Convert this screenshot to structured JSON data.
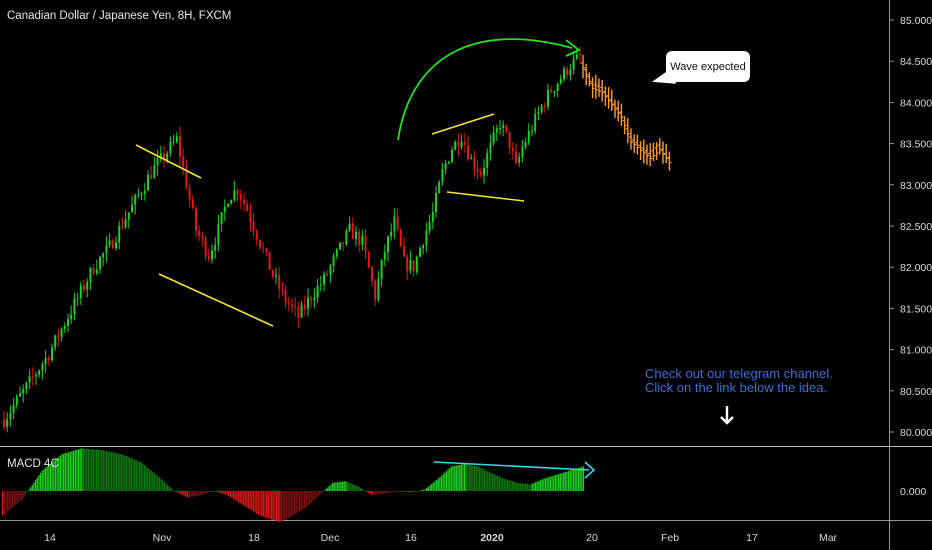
{
  "header": {
    "title": "Canadian Dollar / Japanese Yen, 8H, FXCM"
  },
  "indicator": {
    "label": "MACD 4C",
    "zero_label": "0.000"
  },
  "annotations": {
    "bubble_text": "Wave expected",
    "note_line1": "Check out our telegram channel.",
    "note_line2": "Click on the link below the idea."
  },
  "colors": {
    "up": "#1fd11f",
    "down": "#e01818",
    "projection": "#ff9d22",
    "pattern_lines": "#f4e53a",
    "arc": "#22e322",
    "divergence": "#3cd8e8",
    "note": "#3f6fd6",
    "background": "#000000"
  },
  "chart_data": {
    "type": "candlestick",
    "title": "Canadian Dollar / Japanese Yen, 8H, FXCM",
    "y_axis": {
      "ticks": [
        "85.000",
        "84.500",
        "84.000",
        "83.500",
        "83.000",
        "82.500",
        "82.000",
        "81.500",
        "81.000",
        "80.500",
        "80.000"
      ],
      "range": [
        79.8,
        85.2
      ]
    },
    "x_axis": {
      "ticks": [
        "14",
        "Nov",
        "18",
        "Dec",
        "16",
        "2020",
        "20",
        "Feb",
        "17",
        "Mar"
      ]
    },
    "price_path": [
      [
        0,
        80.15
      ],
      [
        8,
        80.6
      ],
      [
        14,
        80.95
      ],
      [
        20,
        81.4
      ],
      [
        24,
        81.7
      ],
      [
        28,
        82.0
      ],
      [
        33,
        82.25
      ],
      [
        38,
        82.6
      ],
      [
        41,
        82.8
      ],
      [
        46,
        83.15
      ],
      [
        50,
        83.35
      ],
      [
        54,
        83.55
      ],
      [
        56,
        83.2
      ],
      [
        60,
        82.45
      ],
      [
        64,
        82.15
      ],
      [
        67,
        82.45
      ],
      [
        70,
        82.85
      ],
      [
        73,
        82.95
      ],
      [
        76,
        82.7
      ],
      [
        80,
        82.3
      ],
      [
        84,
        81.9
      ],
      [
        88,
        81.6
      ],
      [
        92,
        81.4
      ],
      [
        96,
        81.65
      ],
      [
        100,
        81.85
      ],
      [
        104,
        82.15
      ],
      [
        108,
        82.45
      ],
      [
        112,
        82.3
      ],
      [
        116,
        81.65
      ],
      [
        119,
        82.2
      ],
      [
        122,
        82.55
      ],
      [
        125,
        82.05
      ],
      [
        128,
        82.0
      ],
      [
        131,
        82.35
      ],
      [
        134,
        82.65
      ],
      [
        137,
        83.15
      ],
      [
        140,
        83.45
      ],
      [
        143,
        83.6
      ],
      [
        146,
        83.3
      ],
      [
        149,
        83.15
      ],
      [
        152,
        83.45
      ],
      [
        155,
        83.75
      ],
      [
        158,
        83.5
      ],
      [
        160,
        83.2
      ],
      [
        162,
        83.45
      ],
      [
        165,
        83.7
      ],
      [
        168,
        83.95
      ],
      [
        171,
        84.15
      ],
      [
        174,
        84.3
      ],
      [
        177,
        84.45
      ],
      [
        180,
        84.55
      ]
    ],
    "projection_path": [
      [
        180,
        84.45
      ],
      [
        183,
        84.2
      ],
      [
        186,
        84.15
      ],
      [
        189,
        84.0
      ],
      [
        192,
        83.85
      ],
      [
        195,
        83.55
      ],
      [
        198,
        83.45
      ],
      [
        201,
        83.35
      ],
      [
        204,
        83.45
      ],
      [
        207,
        83.3
      ]
    ],
    "macd_path": [
      [
        0,
        -0.3
      ],
      [
        6,
        -0.1
      ],
      [
        12,
        0.25
      ],
      [
        18,
        0.45
      ],
      [
        24,
        0.52
      ],
      [
        30,
        0.5
      ],
      [
        36,
        0.45
      ],
      [
        42,
        0.35
      ],
      [
        48,
        0.15
      ],
      [
        52,
        0.0
      ],
      [
        56,
        -0.08
      ],
      [
        60,
        -0.05
      ],
      [
        64,
        0.0
      ],
      [
        68,
        -0.05
      ],
      [
        72,
        -0.15
      ],
      [
        78,
        -0.3
      ],
      [
        84,
        -0.38
      ],
      [
        88,
        -0.3
      ],
      [
        92,
        -0.2
      ],
      [
        96,
        -0.05
      ],
      [
        100,
        0.1
      ],
      [
        104,
        0.12
      ],
      [
        108,
        0.05
      ],
      [
        112,
        -0.05
      ],
      [
        116,
        -0.03
      ],
      [
        120,
        0.0
      ],
      [
        124,
        -0.02
      ],
      [
        128,
        0.02
      ],
      [
        132,
        0.15
      ],
      [
        136,
        0.3
      ],
      [
        140,
        0.33
      ],
      [
        144,
        0.3
      ],
      [
        148,
        0.22
      ],
      [
        152,
        0.15
      ],
      [
        156,
        0.1
      ],
      [
        160,
        0.08
      ],
      [
        164,
        0.15
      ],
      [
        168,
        0.2
      ],
      [
        172,
        0.25
      ],
      [
        176,
        0.3
      ]
    ]
  }
}
